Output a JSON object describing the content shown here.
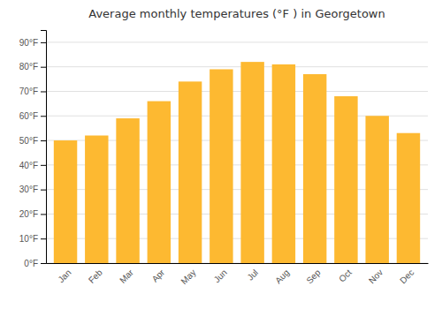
{
  "chart_data": {
    "type": "bar",
    "title": "Average monthly temperatures (°F ) in Georgetown",
    "categories": [
      "Jan",
      "Feb",
      "Mar",
      "Apr",
      "May",
      "Jun",
      "Jul",
      "Aug",
      "Sep",
      "Oct",
      "Nov",
      "Dec"
    ],
    "values": [
      50,
      52,
      59,
      66,
      74,
      79,
      82,
      81,
      77,
      68,
      60,
      53
    ],
    "color": "#FDB931",
    "ylim": [
      0,
      95
    ],
    "yticks": [
      {
        "value": 0,
        "label": "0°F"
      },
      {
        "value": 10,
        "label": "10°F"
      },
      {
        "value": 20,
        "label": "20°F"
      },
      {
        "value": 30,
        "label": "30°F"
      },
      {
        "value": 40,
        "label": "40°F"
      },
      {
        "value": 50,
        "label": "50°F"
      },
      {
        "value": 60,
        "label": "60°F"
      },
      {
        "value": 70,
        "label": "70°F"
      },
      {
        "value": 80,
        "label": "80°F"
      },
      {
        "value": 90,
        "label": "90°F"
      }
    ],
    "grid": true
  }
}
